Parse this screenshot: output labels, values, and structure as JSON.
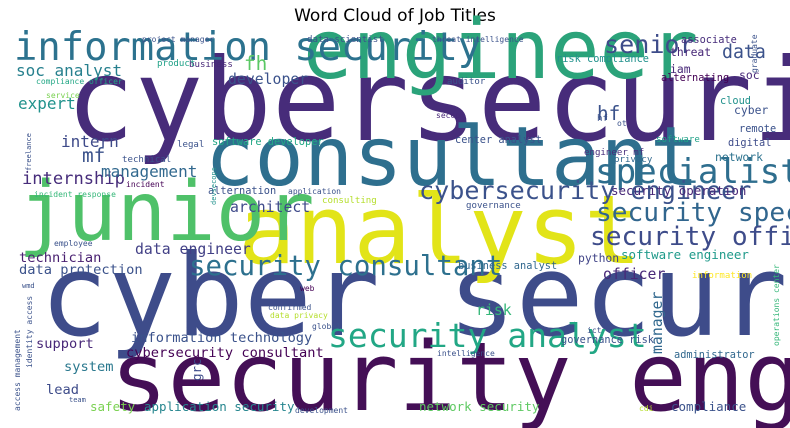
{
  "chart_data": {
    "type": "wordcloud",
    "title": "Word Cloud of Job Titles",
    "colormap": "viridis",
    "background": "#ffffff",
    "words": [
      {
        "text": "cybersecurity",
        "weight": 1.0,
        "color": "#472c7a"
      },
      {
        "text": "cyber security",
        "weight": 0.99,
        "color": "#3e4c8a"
      },
      {
        "text": "security engineer",
        "weight": 0.84,
        "color": "#440f56"
      },
      {
        "text": "analyst",
        "weight": 0.84,
        "color": "#e2e418"
      },
      {
        "text": "consultant",
        "weight": 0.72,
        "color": "#2e6f8e"
      },
      {
        "text": "junior",
        "weight": 0.72,
        "color": "#4fc169"
      },
      {
        "text": "engineer",
        "weight": 0.72,
        "color": "#2ba37a"
      },
      {
        "text": "information security",
        "weight": 0.34,
        "color": "#2c728e"
      },
      {
        "text": "specialist",
        "weight": 0.3,
        "color": "#2e6e8e"
      },
      {
        "text": "security analyst",
        "weight": 0.29,
        "color": "#22a785"
      },
      {
        "text": "security consultant",
        "weight": 0.24,
        "color": "#2d708e"
      },
      {
        "text": "security specialist",
        "weight": 0.23,
        "color": "#31668e"
      },
      {
        "text": "security officer",
        "weight": 0.23,
        "color": "#3e4c8a"
      },
      {
        "text": "cybersecurity engineer",
        "weight": 0.22,
        "color": "#3b528b"
      },
      {
        "text": "senior",
        "weight": 0.22,
        "color": "#3e4c8a"
      },
      {
        "text": "fh",
        "weight": 0.17,
        "color": "#5ac864"
      },
      {
        "text": "mf",
        "weight": 0.17,
        "color": "#3b528b"
      },
      {
        "text": "hf",
        "weight": 0.17,
        "color": "#3b528b"
      },
      {
        "text": "data",
        "weight": 0.16,
        "color": "#3b528b"
      },
      {
        "text": "internship",
        "weight": 0.15,
        "color": "#472d7b"
      },
      {
        "text": "intern",
        "weight": 0.14,
        "color": "#3e4a89"
      },
      {
        "text": "soc analyst",
        "weight": 0.14,
        "color": "#27808e"
      },
      {
        "text": "expert",
        "weight": 0.14,
        "color": "#20928c"
      },
      {
        "text": "management",
        "weight": 0.14,
        "color": "#31688e"
      },
      {
        "text": "data engineer",
        "weight": 0.13,
        "color": "#424086"
      },
      {
        "text": "developer",
        "weight": 0.13,
        "color": "#3b528b"
      },
      {
        "text": "risk",
        "weight": 0.13,
        "color": "#35b779"
      },
      {
        "text": "architect",
        "weight": 0.13,
        "color": "#3e4989"
      },
      {
        "text": "manager",
        "weight": 0.13,
        "color": "#31688e"
      },
      {
        "text": "officer",
        "weight": 0.13,
        "color": "#482878"
      },
      {
        "text": "technician",
        "weight": 0.12,
        "color": "#481f70"
      },
      {
        "text": "data protection",
        "weight": 0.12,
        "color": "#3b528b"
      },
      {
        "text": "information technology",
        "weight": 0.12,
        "color": "#3b528b"
      },
      {
        "text": "cybersecurity consultant",
        "weight": 0.12,
        "color": "#440154"
      },
      {
        "text": "support",
        "weight": 0.12,
        "color": "#482878"
      },
      {
        "text": "system",
        "weight": 0.12,
        "color": "#2a788e"
      },
      {
        "text": "lead",
        "weight": 0.12,
        "color": "#3e4c8a"
      },
      {
        "text": "safety",
        "weight": 0.11,
        "color": "#7ad151"
      },
      {
        "text": "application security",
        "weight": 0.11,
        "color": "#25858e"
      },
      {
        "text": "network security",
        "weight": 0.11,
        "color": "#5ec962"
      },
      {
        "text": "compliance",
        "weight": 0.11,
        "color": "#3b528b"
      },
      {
        "text": "security operation",
        "weight": 0.11,
        "color": "#482878"
      },
      {
        "text": "software engineer",
        "weight": 0.11,
        "color": "#1f9a8a"
      },
      {
        "text": "grc",
        "weight": 0.11,
        "color": "#3e4c8a"
      },
      {
        "text": "cyber",
        "weight": 0.1,
        "color": "#3b528b"
      },
      {
        "text": "network",
        "weight": 0.1,
        "color": "#2c728e"
      },
      {
        "text": "python",
        "weight": 0.1,
        "color": "#414487"
      },
      {
        "text": "iam",
        "weight": 0.1,
        "color": "#482878"
      },
      {
        "text": "soc",
        "weight": 0.1,
        "color": "#482878"
      },
      {
        "text": "threat",
        "weight": 0.1,
        "color": "#482878"
      },
      {
        "text": "risk compliance",
        "weight": 0.09,
        "color": "#21918c"
      },
      {
        "text": "governance risk",
        "weight": 0.09,
        "color": "#3b528b"
      },
      {
        "text": "business analyst",
        "weight": 0.09,
        "color": "#31688e"
      },
      {
        "text": "alternation",
        "weight": 0.09,
        "color": "#3b528b"
      },
      {
        "text": "alternating",
        "weight": 0.09,
        "color": "#440154"
      },
      {
        "text": "digital",
        "weight": 0.09,
        "color": "#3e4c8a"
      },
      {
        "text": "cloud",
        "weight": 0.09,
        "color": "#21918c"
      },
      {
        "text": "remote",
        "weight": 0.09,
        "color": "#3b528b"
      },
      {
        "text": "software developer",
        "weight": 0.09,
        "color": "#22a785"
      },
      {
        "text": "administrator",
        "weight": 0.09,
        "color": "#31688e"
      },
      {
        "text": "center analyst",
        "weight": 0.09,
        "color": "#3b528b"
      },
      {
        "text": "associate",
        "weight": 0.09,
        "color": "#472d7b"
      },
      {
        "text": "data scientist",
        "weight": 0.08,
        "color": "#3b528b"
      },
      {
        "text": "technical",
        "weight": 0.08,
        "color": "#3b528b"
      },
      {
        "text": "auditor",
        "weight": 0.08,
        "color": "#3b528b"
      },
      {
        "text": "engineer mf",
        "weight": 0.08,
        "color": "#472d7b"
      },
      {
        "text": "privacy",
        "weight": 0.08,
        "color": "#31688e"
      },
      {
        "text": "consulting",
        "weight": 0.08,
        "color": "#b5de2b"
      },
      {
        "text": "governance",
        "weight": 0.08,
        "color": "#3b528b"
      },
      {
        "text": "legal",
        "weight": 0.08,
        "color": "#3b528b"
      },
      {
        "text": "hf",
        "weight": 0.08,
        "color": "#3b528b"
      },
      {
        "text": "ot",
        "weight": 0.07,
        "color": "#3b528b"
      },
      {
        "text": "business",
        "weight": 0.08,
        "color": "#482878"
      },
      {
        "text": "product",
        "weight": 0.08,
        "color": "#1fa187"
      },
      {
        "text": "software",
        "weight": 0.08,
        "color": "#1fa187"
      },
      {
        "text": "information",
        "weight": 0.08,
        "color": "#fde725"
      },
      {
        "text": "graduate",
        "weight": 0.07,
        "color": "#3b528b"
      },
      {
        "text": "threat intelligence",
        "weight": 0.07,
        "color": "#3b528b"
      },
      {
        "text": "project manager",
        "weight": 0.07,
        "color": "#3b528b"
      },
      {
        "text": "compliance officer",
        "weight": 0.07,
        "color": "#22a785"
      },
      {
        "text": "service",
        "weight": 0.07,
        "color": "#7ad151"
      },
      {
        "text": "freelance",
        "weight": 0.06,
        "color": "#3b528b"
      },
      {
        "text": "incident response",
        "weight": 0.07,
        "color": "#35b779"
      },
      {
        "text": "incident",
        "weight": 0.07,
        "color": "#440154"
      },
      {
        "text": "devsecops",
        "weight": 0.06,
        "color": "#21918c"
      },
      {
        "text": "application",
        "weight": 0.07,
        "color": "#3b528b"
      },
      {
        "text": "employee",
        "weight": 0.07,
        "color": "#3b528b"
      },
      {
        "text": "secop",
        "weight": 0.07,
        "color": "#482878"
      },
      {
        "text": "web",
        "weight": 0.07,
        "color": "#440154"
      },
      {
        "text": "confirmed",
        "weight": 0.07,
        "color": "#3b528b"
      },
      {
        "text": "data privacy",
        "weight": 0.07,
        "color": "#b5de2b"
      },
      {
        "text": "global",
        "weight": 0.07,
        "color": "#3b528b"
      },
      {
        "text": "intelligence",
        "weight": 0.07,
        "color": "#3b528b"
      },
      {
        "text": "ict",
        "weight": 0.07,
        "color": "#3b528b"
      },
      {
        "text": "wmd",
        "weight": 0.06,
        "color": "#3b528b"
      },
      {
        "text": "access management",
        "weight": 0.07,
        "color": "#3b528b"
      },
      {
        "text": "identity access",
        "weight": 0.07,
        "color": "#3b528b"
      },
      {
        "text": "team",
        "weight": 0.06,
        "color": "#3b528b"
      },
      {
        "text": "development",
        "weight": 0.07,
        "color": "#3b528b"
      },
      {
        "text": "cdi",
        "weight": 0.07,
        "color": "#b5de2b"
      },
      {
        "text": "operations center",
        "weight": 0.07,
        "color": "#35b779"
      }
    ]
  }
}
